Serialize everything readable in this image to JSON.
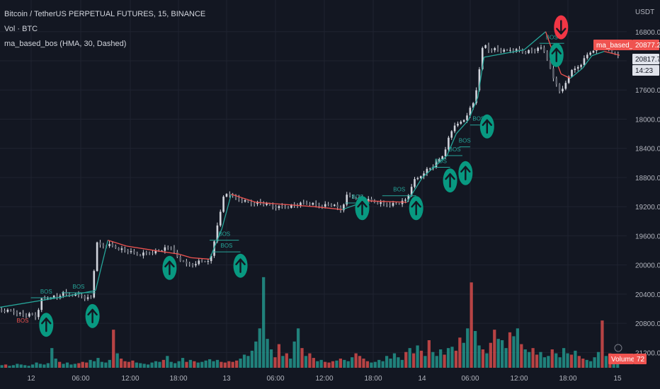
{
  "legend": {
    "symbol": "Bitcoin / TetherUS PERPETUAL FUTURES, 15, BINANCE",
    "volume": "Vol · BTC",
    "indicator": "ma_based_bos (HMA, 30, Dashed)"
  },
  "price_axis": {
    "currency": "USDT",
    "ticks": [
      "21200.0",
      "20800.0",
      "20400.0",
      "20000.0",
      "19600.0",
      "19200.0",
      "18800.0",
      "18400.0",
      "18000.0",
      "17600.0",
      "17200.0",
      "16800.0"
    ]
  },
  "time_axis": {
    "ticks": [
      "12",
      "06:00",
      "12:00",
      "18:00",
      "13",
      "06:00",
      "12:00",
      "18:00",
      "14",
      "06:00",
      "12:00",
      "18:00",
      "15"
    ]
  },
  "labels": {
    "bos": "BOS",
    "ma_tag": "ma_based_bos",
    "ma_value": "20877.2",
    "price_value": "20817.7",
    "countdown": "14:23",
    "volume_tag": "Volume",
    "volume_value": "72"
  },
  "colors": {
    "background": "#131722",
    "up": "#26a69a",
    "down": "#ef5350",
    "candle": "#d1d4dc",
    "signal_up": "#089981",
    "signal_down": "#f23645"
  },
  "chart_data": {
    "type": "candlestick",
    "x_ticks": [
      "12",
      "06:00",
      "12:00",
      "18:00",
      "13",
      "06:00",
      "12:00",
      "18:00",
      "14",
      "06:00",
      "12:00",
      "18:00",
      "15"
    ],
    "y_ticks": [
      16800,
      17200,
      17600,
      18000,
      18400,
      18800,
      19200,
      19600,
      20000,
      20400,
      20800,
      21200
    ],
    "ylim": [
      16600,
      21450
    ],
    "price_path": [
      [
        0,
        17380
      ],
      [
        10,
        17360
      ],
      [
        16,
        17300
      ],
      [
        20,
        17320
      ],
      [
        24,
        17280
      ],
      [
        26,
        17520
      ],
      [
        30,
        17540
      ],
      [
        34,
        17570
      ],
      [
        38,
        17560
      ],
      [
        40,
        17620
      ],
      [
        44,
        17580
      ],
      [
        48,
        17600
      ],
      [
        50,
        17580
      ],
      [
        52,
        17600
      ],
      [
        56,
        17540
      ],
      [
        60,
        17560
      ],
      [
        62,
        18300
      ],
      [
        66,
        18260
      ],
      [
        70,
        18280
      ],
      [
        74,
        18250
      ],
      [
        78,
        18220
      ],
      [
        82,
        18200
      ],
      [
        86,
        18160
      ],
      [
        90,
        18140
      ],
      [
        94,
        18160
      ],
      [
        98,
        18180
      ],
      [
        100,
        18180
      ],
      [
        104,
        18200
      ],
      [
        108,
        18230
      ],
      [
        112,
        18240
      ],
      [
        116,
        18050
      ],
      [
        120,
        18060
      ],
      [
        124,
        17980
      ],
      [
        128,
        18040
      ],
      [
        132,
        18040
      ],
      [
        136,
        18080
      ],
      [
        138,
        18140
      ],
      [
        140,
        18500
      ],
      [
        142,
        18600
      ],
      [
        144,
        18900
      ],
      [
        148,
        19000
      ],
      [
        150,
        18950
      ],
      [
        154,
        18900
      ],
      [
        158,
        18880
      ],
      [
        162,
        18850
      ],
      [
        166,
        18860
      ],
      [
        170,
        18840
      ],
      [
        174,
        18820
      ],
      [
        178,
        18800
      ],
      [
        182,
        18790
      ],
      [
        186,
        18800
      ],
      [
        190,
        18820
      ],
      [
        194,
        18830
      ],
      [
        198,
        18850
      ],
      [
        202,
        18840
      ],
      [
        206,
        18820
      ],
      [
        210,
        18820
      ],
      [
        214,
        18830
      ],
      [
        218,
        18800
      ],
      [
        222,
        18740
      ],
      [
        224,
        18950
      ],
      [
        228,
        18940
      ],
      [
        232,
        18920
      ],
      [
        236,
        18900
      ],
      [
        240,
        18880
      ],
      [
        244,
        18860
      ],
      [
        248,
        18840
      ],
      [
        252,
        18830
      ],
      [
        256,
        18840
      ],
      [
        260,
        18850
      ],
      [
        264,
        18900
      ],
      [
        268,
        19150
      ],
      [
        272,
        19200
      ],
      [
        276,
        19300
      ],
      [
        280,
        19330
      ],
      [
        284,
        19420
      ],
      [
        288,
        19520
      ],
      [
        290,
        19680
      ],
      [
        294,
        19880
      ],
      [
        296,
        19960
      ],
      [
        300,
        19950
      ],
      [
        304,
        20100
      ],
      [
        308,
        20250
      ],
      [
        312,
        20850
      ],
      [
        314,
        21070
      ],
      [
        316,
        20950
      ],
      [
        320,
        20970
      ],
      [
        324,
        20940
      ],
      [
        328,
        20930
      ],
      [
        332,
        20960
      ],
      [
        336,
        20940
      ],
      [
        340,
        20920
      ],
      [
        344,
        20940
      ],
      [
        348,
        20950
      ],
      [
        352,
        20980
      ],
      [
        356,
        20780
      ],
      [
        358,
        20580
      ],
      [
        360,
        20530
      ],
      [
        364,
        20360
      ],
      [
        366,
        20450
      ],
      [
        370,
        20640
      ],
      [
        374,
        20700
      ],
      [
        378,
        20780
      ],
      [
        380,
        20860
      ],
      [
        384,
        20940
      ],
      [
        388,
        21010
      ],
      [
        392,
        20980
      ],
      [
        396,
        20930
      ],
      [
        400,
        20900
      ],
      [
        402,
        20820
      ]
    ],
    "ma_line": [
      [
        0,
        17420
      ],
      [
        40,
        17560
      ],
      [
        62,
        17650
      ],
      [
        70,
        18340
      ],
      [
        82,
        18260
      ],
      [
        100,
        18200
      ],
      [
        116,
        18150
      ],
      [
        124,
        18100
      ],
      [
        136,
        18080
      ],
      [
        144,
        18500
      ],
      [
        150,
        18970
      ],
      [
        166,
        18860
      ],
      [
        204,
        18800
      ],
      [
        222,
        18760
      ],
      [
        238,
        18880
      ],
      [
        264,
        18860
      ],
      [
        274,
        19200
      ],
      [
        290,
        19500
      ],
      [
        296,
        19800
      ],
      [
        304,
        19990
      ],
      [
        310,
        20300
      ],
      [
        314,
        20850
      ],
      [
        340,
        20950
      ],
      [
        354,
        21200
      ],
      [
        358,
        20960
      ],
      [
        364,
        20620
      ],
      [
        370,
        20560
      ],
      [
        378,
        20700
      ],
      [
        384,
        20870
      ],
      [
        392,
        20930
      ],
      [
        402,
        20877
      ]
    ],
    "up_signals": [
      [
        30,
        17180
      ],
      [
        60,
        17300
      ],
      [
        110,
        17960
      ],
      [
        156,
        17990
      ],
      [
        235,
        18780
      ],
      [
        270,
        18780
      ],
      [
        292,
        19160
      ],
      [
        302,
        19260
      ],
      [
        316,
        19900
      ],
      [
        361,
        20880
      ]
    ],
    "down_signals": [
      [
        364,
        21260
      ]
    ],
    "bos_levels": [
      [
        20,
        17550,
        40
      ],
      [
        40,
        17620,
        62
      ],
      [
        138,
        18180,
        156
      ],
      [
        136,
        18340,
        155
      ],
      [
        224,
        18850,
        240
      ],
      [
        248,
        18950,
        270
      ],
      [
        280,
        19340,
        292
      ],
      [
        290,
        19500,
        300
      ],
      [
        298,
        19620,
        305
      ],
      [
        305,
        19920,
        316
      ],
      [
        350,
        21040,
        366
      ]
    ],
    "volume": {
      "max": 140,
      "series": [
        4,
        5,
        3,
        4,
        6,
        5,
        4,
        3,
        5,
        8,
        6,
        5,
        7,
        30,
        14,
        9,
        6,
        8,
        5,
        6,
        7,
        9,
        8,
        12,
        10,
        15,
        9,
        8,
        12,
        58,
        22,
        14,
        10,
        9,
        11,
        8,
        7,
        6,
        5,
        8,
        10,
        9,
        12,
        18,
        9,
        7,
        10,
        15,
        9,
        12,
        10,
        8,
        9,
        11,
        13,
        10,
        12,
        9,
        8,
        10,
        9,
        11,
        14,
        20,
        18,
        26,
        40,
        60,
        138,
        44,
        28,
        16,
        36,
        18,
        22,
        14,
        40,
        60,
        30,
        18,
        22,
        15,
        10,
        12,
        9,
        8,
        10,
        11,
        14,
        12,
        10,
        16,
        22,
        18,
        14,
        10,
        8,
        9,
        12,
        10,
        18,
        14,
        22,
        16,
        12,
        24,
        30,
        22,
        34,
        26,
        18,
        42,
        24,
        18,
        28,
        20,
        30,
        32,
        26,
        46,
        38,
        60,
        130,
        56,
        34,
        28,
        22,
        38,
        58,
        44,
        42,
        30,
        54,
        48,
        60,
        36,
        28,
        24,
        30,
        20,
        24,
        16,
        18,
        28,
        22,
        16,
        30,
        22,
        20,
        26,
        18,
        14,
        12,
        10,
        16,
        24,
        72,
        18,
        22,
        14,
        10
      ]
    }
  }
}
